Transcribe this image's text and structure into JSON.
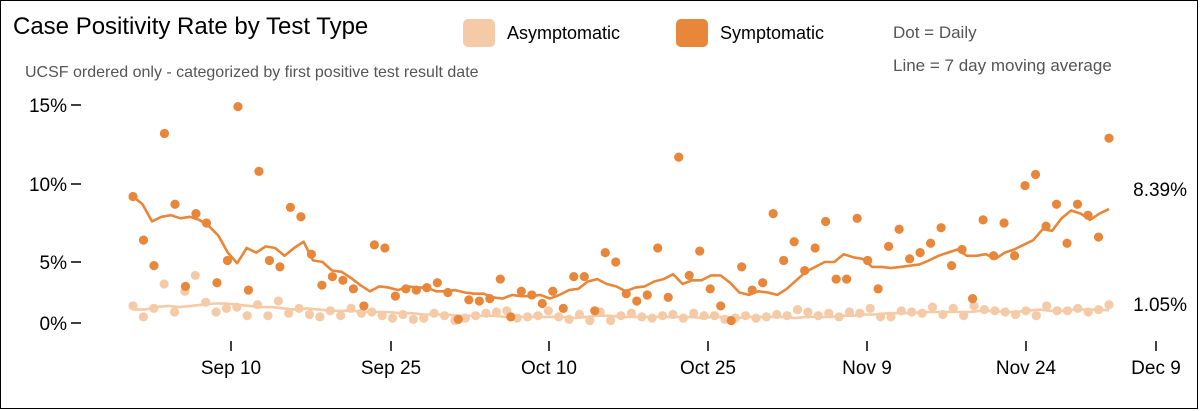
{
  "header": {
    "title": "Case Positivity Rate by Test Type",
    "subtitle": "UCSF ordered only - categorized by first positive test result date",
    "note_dot": "Dot = Daily",
    "note_line": "Line = 7 day moving average"
  },
  "colors": {
    "asymptomatic": "#f5cba7",
    "symptomatic": "#e8863a"
  },
  "chart_data": {
    "type": "scatter",
    "title": "Case Positivity Rate by Test Type",
    "subtitle": "UCSF ordered only - categorized by first positive test result date",
    "x_tick_labels": [
      "Sep 10",
      "Sep 25",
      "Oct 10",
      "Oct 25",
      "Nov 9",
      "Nov 24",
      "Dec 9"
    ],
    "y_tick_labels": [
      "0%",
      "5%",
      "10%",
      "15%"
    ],
    "ylim": [
      0,
      15
    ],
    "x_range": [
      "Aug 31",
      "Dec 9"
    ],
    "grid": false,
    "legend_position": "top",
    "end_labels": {
      "symptomatic": "8.39%",
      "asymptomatic": "1.05%"
    },
    "series": [
      {
        "name": "Symptomatic",
        "color": "#e8863a",
        "daily": [
          9.2,
          6.4,
          4.7,
          13.2,
          8.7,
          3.0,
          8.1,
          7.5,
          3.3,
          5.1,
          14.9,
          2.7,
          10.8,
          5.1,
          4.6,
          8.5,
          7.9,
          5.5,
          3.1,
          3.8,
          3.5,
          2.8,
          1.4,
          6.1,
          5.9,
          2.2,
          2.8,
          2.7,
          2.9,
          3.3,
          2.5,
          0.3,
          1.9,
          1.8,
          2.0,
          3.6,
          0.5,
          2.6,
          2.3,
          1.6,
          2.6,
          1.2,
          3.8,
          3.8,
          1.0,
          5.6,
          5.0,
          2.4,
          1.8,
          2.3,
          5.9,
          2.1,
          11.7,
          3.9,
          5.7,
          2.8,
          1.4,
          0.2,
          4.6,
          2.7,
          3.3,
          8.1,
          5.1,
          6.3,
          4.3,
          5.9,
          7.6,
          3.6,
          3.6,
          7.8,
          5.1,
          2.8,
          6.0,
          7.1,
          5.2,
          5.6,
          6.2,
          7.2,
          4.7,
          5.8,
          2.0,
          7.7,
          5.4,
          7.5,
          5.4,
          9.9,
          10.6,
          7.3,
          8.7,
          6.2,
          8.7,
          8.0,
          6.6,
          12.9
        ],
        "moving_avg": [
          9.2,
          8.7,
          7.6,
          7.9,
          8.0,
          7.8,
          7.9,
          7.7,
          7.3,
          6.7,
          5.6,
          4.9,
          5.9,
          5.6,
          6.0,
          5.9,
          5.4,
          5.9,
          6.3,
          5.1,
          5.0,
          4.3,
          4.2,
          3.7,
          3.1,
          2.6,
          3.0,
          2.9,
          2.7,
          3.0,
          2.9,
          2.9,
          2.6,
          2.6,
          2.7,
          2.5,
          2.4,
          2.4,
          2.1,
          2.0,
          2.3,
          2.2,
          2.2,
          2.3,
          2.0,
          2.3,
          2.7,
          2.8,
          3.4,
          3.6,
          3.2,
          3.0,
          2.6,
          2.9,
          3.0,
          3.4,
          3.6,
          4.0,
          3.2,
          3.5,
          3.5,
          3.9,
          3.9,
          3.3,
          2.5,
          2.3,
          2.6,
          2.5,
          2.3,
          2.8,
          3.5,
          4.2,
          4.6,
          5.0,
          5.0,
          5.5,
          5.3,
          5.2,
          4.6,
          4.6,
          4.5,
          4.6,
          4.7,
          4.8,
          5.1,
          5.4,
          5.6,
          5.8,
          5.4,
          5.4,
          5.5,
          5.2,
          5.6,
          5.8,
          6.1,
          6.4,
          7.1,
          7.0,
          7.8,
          8.3,
          8.1,
          7.7,
          8.1,
          8.39
        ],
        "moving_avg_start": 0
      },
      {
        "name": "Asymptomatic",
        "color": "#f5cba7",
        "daily": [
          1.4,
          0.5,
          1.2,
          3.2,
          0.9,
          2.6,
          3.9,
          1.7,
          0.9,
          1.2,
          1.3,
          0.6,
          1.5,
          0.6,
          1.8,
          0.8,
          1.2,
          0.7,
          0.5,
          1.0,
          0.6,
          1.2,
          0.8,
          0.9,
          0.6,
          0.4,
          0.7,
          0.3,
          0.4,
          0.8,
          0.6,
          0.2,
          0.4,
          0.6,
          0.8,
          0.9,
          1.0,
          0.4,
          0.5,
          0.6,
          1.0,
          0.5,
          0.3,
          0.7,
          0.2,
          0.9,
          0.2,
          0.6,
          0.8,
          0.5,
          0.4,
          0.6,
          0.7,
          0.4,
          0.8,
          0.6,
          0.6,
          0.3,
          0.4,
          0.6,
          0.4,
          0.5,
          0.7,
          0.6,
          1.1,
          0.9,
          0.6,
          0.8,
          0.5,
          0.9,
          0.8,
          1.2,
          0.5,
          0.5,
          1.0,
          0.9,
          0.8,
          1.3,
          0.7,
          1.2,
          0.6,
          1.4,
          1.1,
          1.0,
          0.9,
          0.7,
          1.0,
          0.6,
          1.4,
          1.0,
          1.0,
          1.2,
          0.9,
          1.1,
          1.5
        ],
        "moving_avg": [
          1.1,
          1.1,
          1.3,
          1.4,
          1.3,
          1.4,
          1.5,
          1.6,
          1.6,
          1.5,
          1.4,
          1.3,
          1.3,
          1.2,
          1.1,
          1.2,
          1.1,
          1.0,
          1.0,
          1.0,
          0.9,
          0.9,
          0.9,
          0.8,
          0.8,
          0.7,
          0.7,
          0.7,
          0.6,
          0.6,
          0.6,
          0.6,
          0.5,
          0.5,
          0.5,
          0.5,
          0.5,
          0.5,
          0.4,
          0.5,
          0.6,
          0.6,
          0.5,
          0.5,
          0.5,
          0.5,
          0.5,
          0.5,
          0.5,
          0.4,
          0.5,
          0.5,
          0.4,
          0.5,
          0.5,
          0.5,
          0.5,
          0.4,
          0.5,
          0.5,
          0.5,
          0.6,
          0.6,
          0.7,
          0.7,
          0.8,
          0.8,
          0.8,
          0.9,
          0.9,
          0.9,
          0.9,
          0.9,
          1.0,
          1.0,
          0.9,
          0.9,
          1.0,
          1.1,
          1.0,
          1.0,
          1.1,
          1.1,
          1.1,
          1.05
        ],
        "moving_avg_start": 0
      }
    ]
  }
}
